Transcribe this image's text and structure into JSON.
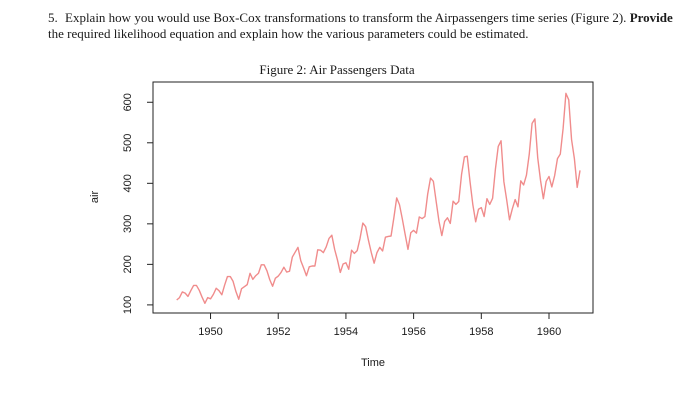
{
  "question": {
    "number": "5.",
    "text_part1": "Explain how you would use Box-Cox transformations to transform the Airpassengers time series (Figure 2).",
    "bold_word": "Provide",
    "text_part2": "the required likelihood equation and explain how the various parameters could be estimated."
  },
  "chart_data": {
    "type": "line",
    "title": "Figure 2: Air Passengers Data",
    "xlabel": "Time",
    "ylabel": "air",
    "xlim": [
      1948.3,
      1961.3
    ],
    "ylim": [
      80,
      650
    ],
    "x_ticks": [
      1950,
      1952,
      1954,
      1956,
      1958,
      1960
    ],
    "x_tick_labels": [
      "1950",
      "1952",
      "1954",
      "1956",
      "1958",
      "1960"
    ],
    "y_ticks": [
      100,
      200,
      300,
      400,
      500,
      600
    ],
    "y_tick_labels": [
      "100",
      "200",
      "300",
      "400",
      "500",
      "600"
    ],
    "grid": false,
    "line_color": "#f08c8c",
    "series": [
      {
        "x_start": 1949.0,
        "x_step": 0.0833333,
        "values": [
          112,
          118,
          132,
          129,
          121,
          135,
          148,
          148,
          136,
          119,
          104,
          118,
          115,
          126,
          141,
          135,
          125,
          149,
          170,
          170,
          158,
          133,
          114,
          140,
          145,
          150,
          178,
          163,
          172,
          178,
          199,
          199,
          184,
          162,
          146,
          166,
          171,
          180,
          193,
          181,
          183,
          218,
          230,
          242,
          209,
          191,
          172,
          194,
          196,
          196,
          236,
          235,
          229,
          243,
          264,
          272,
          237,
          211,
          180,
          201,
          204,
          188,
          235,
          227,
          234,
          264,
          302,
          293,
          259,
          229,
          203,
          229,
          242,
          233,
          267,
          269,
          270,
          315,
          364,
          347,
          312,
          274,
          237,
          278,
          284,
          277,
          317,
          313,
          318,
          374,
          413,
          405,
          355,
          306,
          271,
          306,
          315,
          301,
          356,
          348,
          355,
          422,
          465,
          467,
          404,
          347,
          305,
          336,
          340,
          318,
          362,
          348,
          363,
          435,
          491,
          505,
          404,
          359,
          310,
          337,
          360,
          342,
          406,
          396,
          420,
          472,
          548,
          559,
          463,
          407,
          362,
          405,
          417,
          391,
          419,
          461,
          472,
          535,
          622,
          606,
          508,
          461,
          390,
          432
        ]
      }
    ]
  }
}
